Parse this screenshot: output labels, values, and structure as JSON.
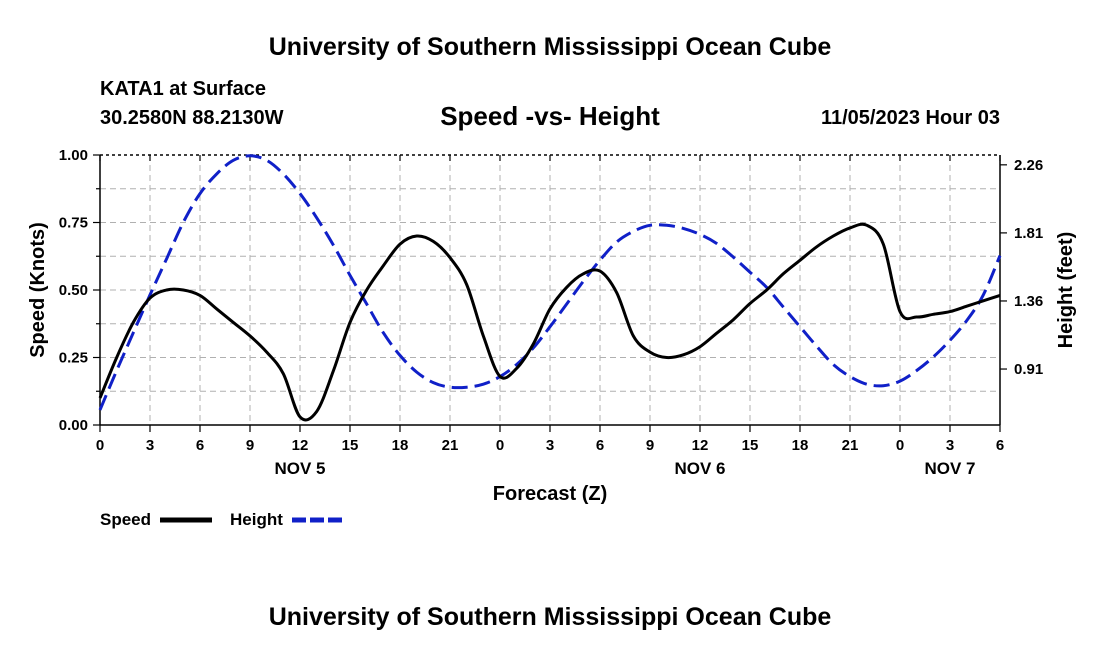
{
  "header": {
    "title": "University of Southern Mississippi Ocean Cube",
    "station": "KATA1 at Surface",
    "coords": "30.2580N  88.2130W",
    "subtitle": "Speed -vs- Height",
    "datetime": "11/05/2023 Hour 03"
  },
  "footer": {
    "title": "University of Southern Mississippi Ocean Cube"
  },
  "colors": {
    "speed": "#000000",
    "height": "#1020c8"
  },
  "chart_data": {
    "type": "line",
    "title": "Speed -vs- Height",
    "xlabel": "Forecast (Z)",
    "ylabel": "Speed (Knots)",
    "y2label": "Height (feet)",
    "xlim": [
      0,
      54
    ],
    "ylim": [
      0,
      1.0
    ],
    "y2lim": [
      0.54,
      2.325
    ],
    "grid": true,
    "x_tick_values": [
      0,
      3,
      6,
      9,
      12,
      15,
      18,
      21,
      24,
      27,
      30,
      33,
      36,
      39,
      42,
      45,
      48,
      51,
      54
    ],
    "x_tick_labels": [
      "0",
      "3",
      "6",
      "9",
      "12",
      "15",
      "18",
      "21",
      "0",
      "3",
      "6",
      "9",
      "12",
      "15",
      "18",
      "21",
      "0",
      "3",
      "6"
    ],
    "day_labels": [
      {
        "x": 12,
        "label": "NOV 5"
      },
      {
        "x": 36,
        "label": "NOV 6"
      },
      {
        "x": 51,
        "label": "NOV 7"
      }
    ],
    "y_tick_values": [
      0,
      0.25,
      0.5,
      0.75,
      1.0
    ],
    "y_tick_labels": [
      "0.00",
      "0.25",
      "0.50",
      "0.75",
      "1.00"
    ],
    "y2_tick_values": [
      0.91,
      1.36,
      1.81,
      2.26
    ],
    "y2_tick_labels": [
      "0.91",
      "1.36",
      "1.81",
      "2.26"
    ],
    "legend": [
      {
        "name": "Speed",
        "color": "#000000",
        "style": "solid"
      },
      {
        "name": "Height",
        "color": "#1020c8",
        "style": "dashed"
      }
    ],
    "series": [
      {
        "name": "Speed",
        "axis": "left",
        "x": [
          0,
          1,
          2,
          3,
          4,
          5,
          6,
          7,
          8,
          9,
          10,
          11,
          12,
          13,
          14,
          15,
          16,
          17,
          18,
          19,
          20,
          21,
          22,
          23,
          24,
          25,
          26,
          27,
          28,
          29,
          30,
          31,
          32,
          33,
          34,
          35,
          36,
          37,
          38,
          39,
          40,
          41,
          42,
          43,
          44,
          45,
          46,
          47,
          48,
          49,
          50,
          51,
          52,
          53,
          54
        ],
        "values": [
          0.1,
          0.25,
          0.38,
          0.47,
          0.5,
          0.5,
          0.48,
          0.43,
          0.38,
          0.33,
          0.27,
          0.19,
          0.03,
          0.05,
          0.2,
          0.38,
          0.5,
          0.59,
          0.67,
          0.7,
          0.68,
          0.62,
          0.52,
          0.33,
          0.18,
          0.21,
          0.3,
          0.43,
          0.51,
          0.56,
          0.57,
          0.49,
          0.33,
          0.27,
          0.25,
          0.26,
          0.29,
          0.34,
          0.39,
          0.45,
          0.5,
          0.56,
          0.61,
          0.66,
          0.7,
          0.73,
          0.74,
          0.67,
          0.42,
          0.4,
          0.41,
          0.42,
          0.44,
          0.46,
          0.48
        ]
      },
      {
        "name": "Height",
        "axis": "right",
        "x": [
          0,
          1,
          2,
          3,
          4,
          5,
          6,
          7,
          8,
          9,
          10,
          11,
          12,
          13,
          14,
          15,
          16,
          17,
          18,
          19,
          20,
          21,
          22,
          23,
          24,
          25,
          26,
          27,
          28,
          29,
          30,
          31,
          32,
          33,
          34,
          35,
          36,
          37,
          38,
          39,
          40,
          41,
          42,
          43,
          44,
          45,
          46,
          47,
          48,
          49,
          50,
          51,
          52,
          53,
          54
        ],
        "values": [
          0.64,
          0.9,
          1.15,
          1.4,
          1.64,
          1.88,
          2.07,
          2.2,
          2.29,
          2.32,
          2.29,
          2.2,
          2.07,
          1.91,
          1.73,
          1.53,
          1.34,
          1.15,
          1.0,
          0.89,
          0.82,
          0.79,
          0.79,
          0.81,
          0.86,
          0.94,
          1.05,
          1.19,
          1.34,
          1.49,
          1.63,
          1.75,
          1.82,
          1.86,
          1.86,
          1.84,
          1.8,
          1.74,
          1.65,
          1.55,
          1.45,
          1.32,
          1.19,
          1.06,
          0.94,
          0.86,
          0.81,
          0.8,
          0.83,
          0.9,
          0.99,
          1.1,
          1.23,
          1.4,
          1.66
        ]
      }
    ]
  }
}
